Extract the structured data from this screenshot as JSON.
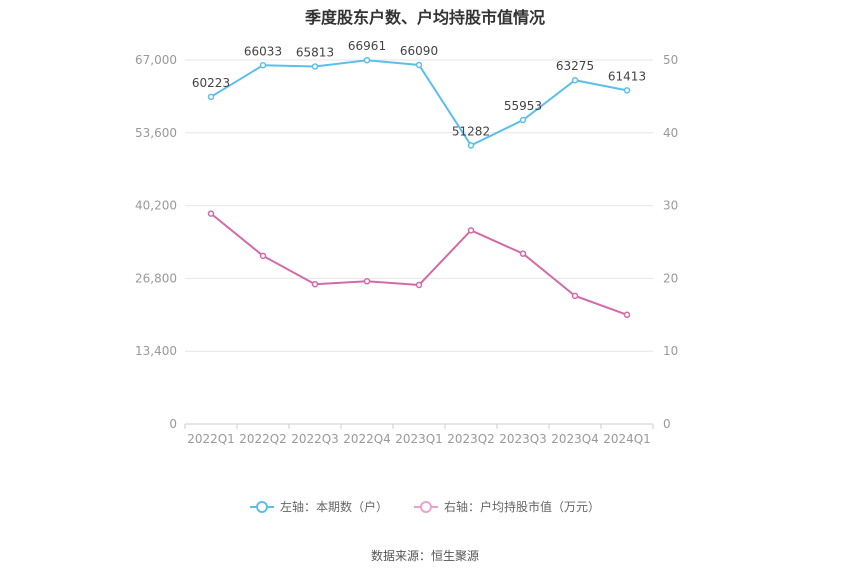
{
  "title": "季度股东户数、户均持股市值情况",
  "source": "数据来源：恒生聚源",
  "colors": {
    "left_series": "#5bbfec",
    "right_series": "#d26aa9",
    "grid": "#e6e6e6",
    "axis_text": "#999999"
  },
  "legend": [
    {
      "label": "左轴：本期数（户）",
      "color": "#5bbfec"
    },
    {
      "label": "右轴：户均持股市值（万元）",
      "color": "#e8a3cd"
    }
  ],
  "chart_data": {
    "type": "line",
    "title": "季度股东户数、户均持股市值情况",
    "categories": [
      "2022Q1",
      "2022Q2",
      "2022Q3",
      "2022Q4",
      "2023Q1",
      "2023Q2",
      "2023Q3",
      "2023Q4",
      "2024Q1"
    ],
    "left_axis": {
      "ticks": [
        "0",
        "13,400",
        "26,800",
        "40,200",
        "53,600",
        "67,000"
      ],
      "tick_values": [
        0,
        13400,
        26800,
        40200,
        53600,
        67000
      ],
      "range": [
        0,
        67000
      ]
    },
    "right_axis": {
      "ticks": [
        "0",
        "10",
        "20",
        "30",
        "40",
        "50"
      ],
      "tick_values": [
        0,
        10,
        20,
        30,
        40,
        50
      ],
      "range": [
        0,
        50
      ]
    },
    "series": [
      {
        "name": "左轴：本期数（户）",
        "axis": "left",
        "values": [
          60223,
          66033,
          65813,
          66961,
          66090,
          51282,
          55953,
          63275,
          61413
        ],
        "labels": [
          "60223",
          "66033",
          "65813",
          "66961",
          "66090",
          "51282",
          "55953",
          "63275",
          "61413"
        ]
      },
      {
        "name": "右轴：户均持股市值（万元）",
        "axis": "right",
        "values": [
          28.9,
          23.1,
          19.2,
          19.6,
          19.1,
          26.6,
          23.4,
          17.6,
          15.0
        ]
      }
    ],
    "grid": true,
    "legend_position": "bottom"
  }
}
